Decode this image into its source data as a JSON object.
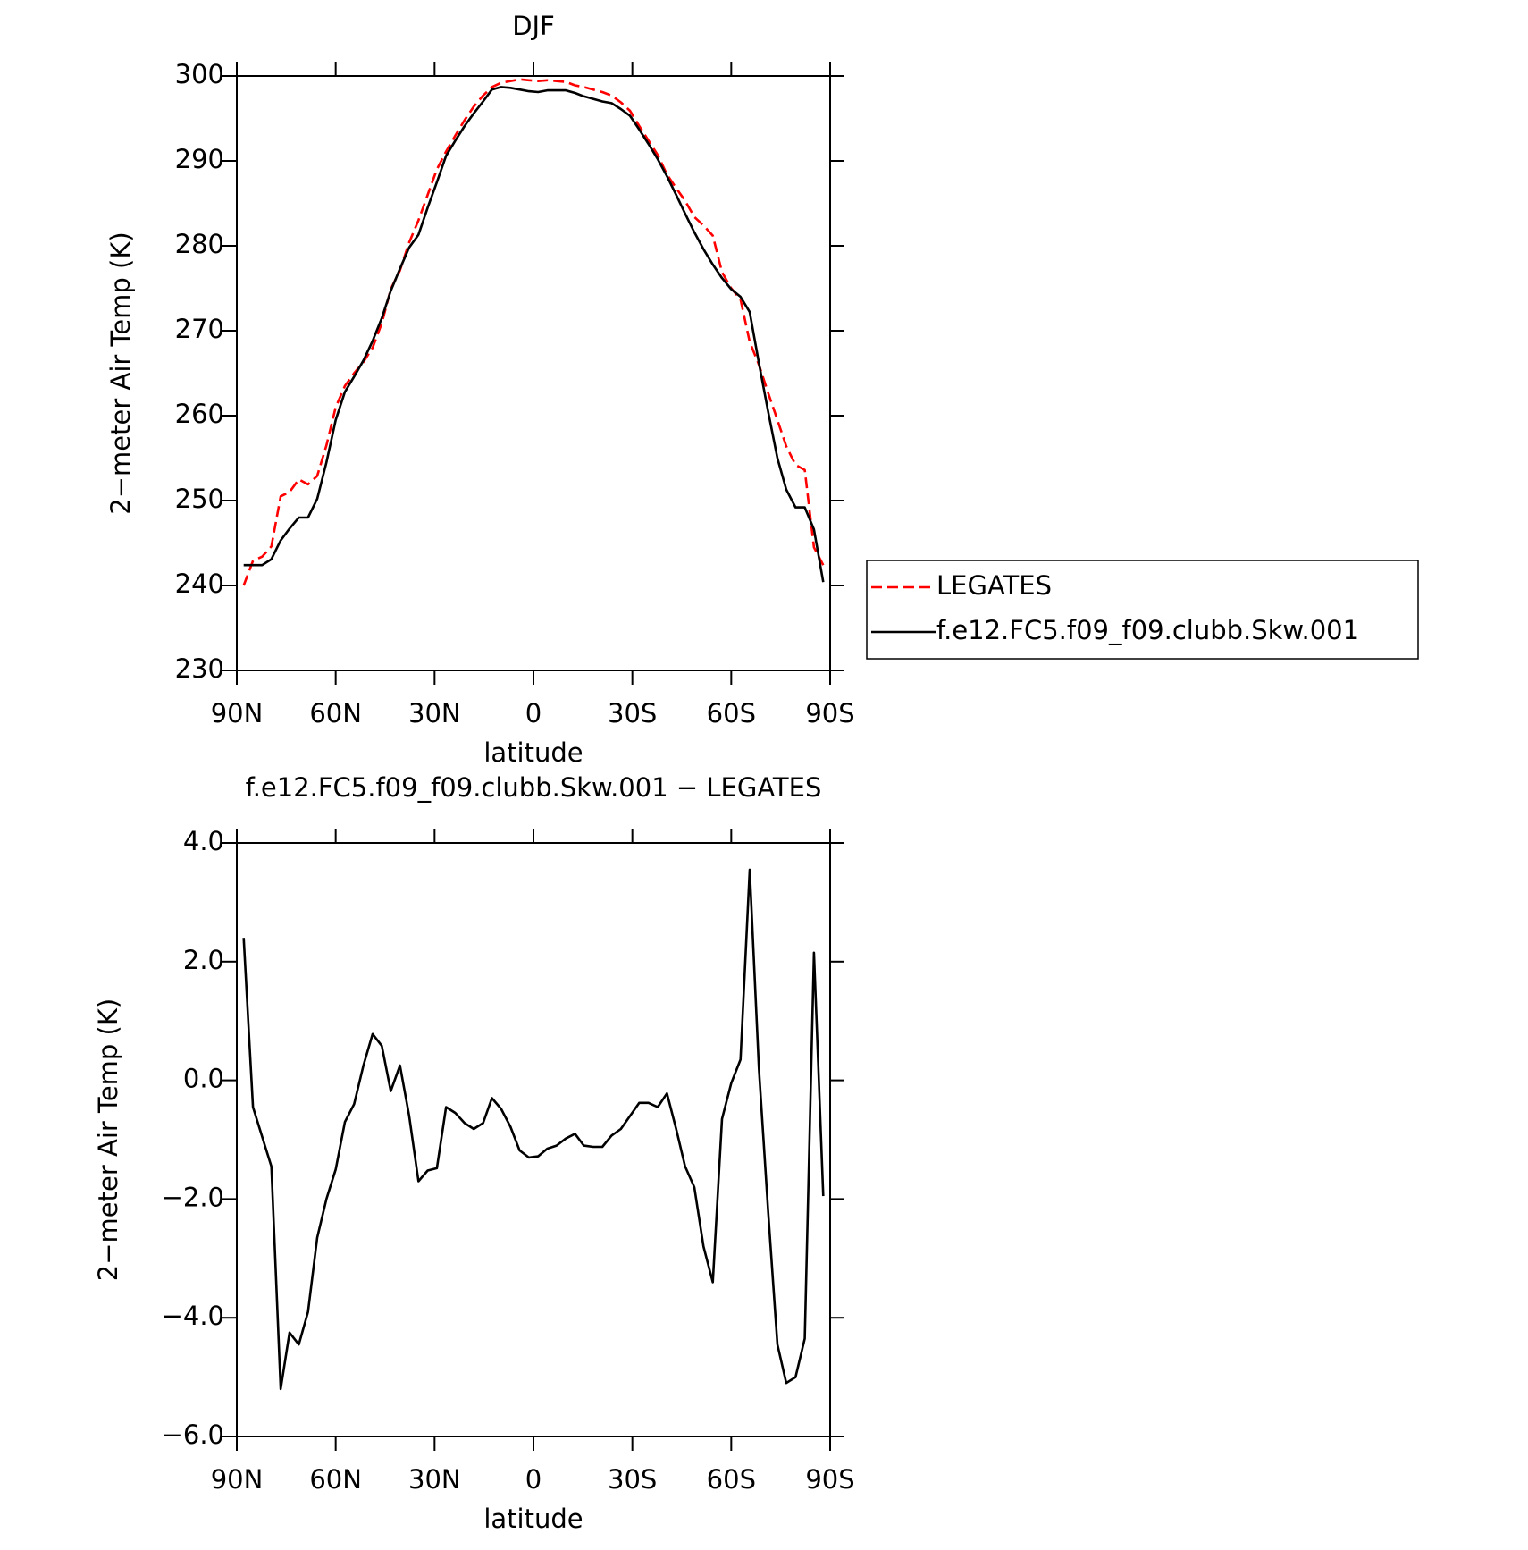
{
  "chart_data": [
    {
      "type": "line",
      "title": "DJF",
      "xlabel": "latitude",
      "ylabel": "2−meter Air Temp (K)",
      "x": [
        87.9,
        85.1,
        82.3,
        79.5,
        76.7,
        74.0,
        71.2,
        68.4,
        65.6,
        62.8,
        60.0,
        57.2,
        54.4,
        51.6,
        48.8,
        46.0,
        43.3,
        40.5,
        37.7,
        34.9,
        32.1,
        29.3,
        26.5,
        23.7,
        20.9,
        18.1,
        15.3,
        12.6,
        9.8,
        7.0,
        4.2,
        1.4,
        -1.4,
        -4.2,
        -7.0,
        -9.8,
        -12.6,
        -15.3,
        -18.1,
        -20.9,
        -23.7,
        -26.5,
        -29.3,
        -32.1,
        -34.9,
        -37.7,
        -40.5,
        -43.3,
        -46.0,
        -48.8,
        -51.6,
        -54.4,
        -57.2,
        -60.0,
        -62.8,
        -65.6,
        -68.4,
        -71.2,
        -74.0,
        -76.7,
        -79.5,
        -82.3,
        -85.1,
        -87.9
      ],
      "series": [
        {
          "name": "LEGATES",
          "color": "#ff0000",
          "style": "dashed",
          "values": [
            240.0,
            242.9,
            243.4,
            244.6,
            250.5,
            251.0,
            252.5,
            251.9,
            252.9,
            256.5,
            261.0,
            263.5,
            265.0,
            266.3,
            268.0,
            270.9,
            274.9,
            277.1,
            280.4,
            283.0,
            286.0,
            289.0,
            291.1,
            293.0,
            294.8,
            296.4,
            297.7,
            298.7,
            299.2,
            299.4,
            299.6,
            299.5,
            299.4,
            299.5,
            299.4,
            299.3,
            298.9,
            298.7,
            298.4,
            298.1,
            297.7,
            296.9,
            295.9,
            294.1,
            292.4,
            290.7,
            288.4,
            286.8,
            285.3,
            283.4,
            282.4,
            281.2,
            276.9,
            275.0,
            273.7,
            268.7,
            266.0,
            262.7,
            259.5,
            256.4,
            254.2,
            253.6,
            244.5,
            242.4
          ]
        },
        {
          "name": "f.e12.FC5.f09_f09.clubb.Skw.001",
          "color": "#000000",
          "style": "solid",
          "values": [
            242.4,
            242.4,
            242.4,
            243.1,
            245.3,
            246.7,
            248.0,
            248.0,
            250.2,
            254.5,
            259.5,
            262.8,
            264.6,
            266.5,
            268.8,
            271.5,
            274.7,
            277.3,
            279.8,
            281.3,
            284.5,
            287.5,
            290.6,
            292.4,
            294.1,
            295.6,
            297.0,
            298.4,
            298.7,
            298.6,
            298.4,
            298.2,
            298.1,
            298.3,
            298.3,
            298.3,
            298.0,
            297.6,
            297.3,
            297.0,
            296.8,
            296.1,
            295.3,
            293.7,
            292.0,
            290.2,
            288.2,
            286.0,
            283.8,
            281.6,
            279.6,
            277.8,
            276.2,
            274.9,
            274.0,
            272.2,
            266.2,
            260.5,
            255.0,
            251.3,
            249.2,
            249.2,
            246.6,
            240.4
          ]
        }
      ],
      "xlim": [
        90,
        -90
      ],
      "xticks": [
        {
          "value": 90,
          "label": "90N"
        },
        {
          "value": 60,
          "label": "60N"
        },
        {
          "value": 30,
          "label": "30N"
        },
        0,
        {
          "value": -30,
          "label": "30S"
        },
        {
          "value": -60,
          "label": "60S"
        },
        {
          "value": -90,
          "label": "90S"
        }
      ],
      "ylim": [
        230,
        300
      ],
      "yticks": [
        230,
        240,
        250,
        260,
        270,
        280,
        290,
        300
      ],
      "legend": "outside-right"
    },
    {
      "type": "line",
      "title": "f.e12.FC5.f09_f09.clubb.Skw.001 − LEGATES",
      "xlabel": "latitude",
      "ylabel": "2−meter Air Temp (K)",
      "x": [
        87.9,
        85.1,
        82.3,
        79.5,
        76.7,
        74.0,
        71.2,
        68.4,
        65.6,
        62.8,
        60.0,
        57.2,
        54.4,
        51.6,
        48.8,
        46.0,
        43.3,
        40.5,
        37.7,
        34.9,
        32.1,
        29.3,
        26.5,
        23.7,
        20.9,
        18.1,
        15.3,
        12.6,
        9.8,
        7.0,
        4.2,
        1.4,
        -1.4,
        -4.2,
        -7.0,
        -9.8,
        -12.6,
        -15.3,
        -18.1,
        -20.9,
        -23.7,
        -26.5,
        -29.3,
        -32.1,
        -34.9,
        -37.7,
        -40.5,
        -43.3,
        -46.0,
        -48.8,
        -51.6,
        -54.4,
        -57.2,
        -60.0,
        -62.8,
        -65.6,
        -68.4,
        -71.2,
        -74.0,
        -76.7,
        -79.5,
        -82.3,
        -85.1,
        -87.9
      ],
      "color": "#000000",
      "values": [
        2.4,
        -0.45,
        -0.95,
        -1.45,
        -5.2,
        -4.25,
        -4.45,
        -3.9,
        -2.65,
        -2.0,
        -1.5,
        -0.7,
        -0.4,
        0.25,
        0.78,
        0.58,
        -0.18,
        0.25,
        -0.6,
        -1.7,
        -1.52,
        -1.48,
        -0.45,
        -0.55,
        -0.72,
        -0.82,
        -0.72,
        -0.3,
        -0.48,
        -0.78,
        -1.18,
        -1.3,
        -1.28,
        -1.15,
        -1.1,
        -0.98,
        -0.9,
        -1.1,
        -1.12,
        -1.12,
        -0.93,
        -0.82,
        -0.6,
        -0.38,
        -0.38,
        -0.45,
        -0.22,
        -0.82,
        -1.45,
        -1.8,
        -2.8,
        -3.4,
        -0.65,
        -0.05,
        0.35,
        3.55,
        0.2,
        -2.2,
        -4.45,
        -5.1,
        -5.0,
        -4.35,
        2.15,
        -1.95
      ],
      "xlim": [
        90,
        -90
      ],
      "xticks": [
        {
          "value": 90,
          "label": "90N"
        },
        {
          "value": 60,
          "label": "60N"
        },
        {
          "value": 30,
          "label": "30N"
        },
        0,
        {
          "value": -30,
          "label": "30S"
        },
        {
          "value": -60,
          "label": "60S"
        },
        {
          "value": -90,
          "label": "90S"
        }
      ],
      "ylim": [
        -6,
        4
      ],
      "yticks": [
        {
          "value": -6,
          "label": "−6.0"
        },
        {
          "value": -4,
          "label": "−4.0"
        },
        {
          "value": -2,
          "label": "−2.0"
        },
        {
          "value": 0,
          "label": "0.0"
        },
        {
          "value": 2,
          "label": "2.0"
        },
        {
          "value": 4,
          "label": "4.0"
        }
      ]
    }
  ]
}
